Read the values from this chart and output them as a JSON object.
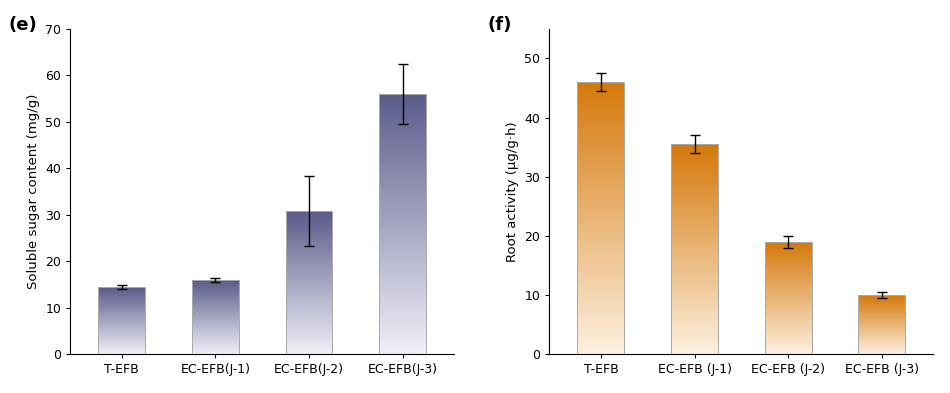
{
  "panel_e": {
    "categories": [
      "T-EFB",
      "EC-EFB(J-1)",
      "EC-EFB(J-2)",
      "EC-EFB(J-3)"
    ],
    "values": [
      14.5,
      16.0,
      30.8,
      56.0
    ],
    "errors": [
      0.5,
      0.5,
      7.5,
      6.5
    ],
    "ylabel": "Soluble sugar content (mg/g)",
    "ylim": [
      0,
      70
    ],
    "yticks": [
      0,
      10,
      20,
      30,
      40,
      50,
      60,
      70
    ],
    "label": "(e)",
    "bar_color_top": "#5a5a8a",
    "bar_color_bottom": "#f0f0f8"
  },
  "panel_f": {
    "categories": [
      "T-EFB",
      "EC-EFB (J-1)",
      "EC-EFB (J-2)",
      "EC-EFB (J-3)"
    ],
    "values": [
      46.0,
      35.5,
      19.0,
      10.0
    ],
    "errors": [
      1.5,
      1.5,
      1.0,
      0.5
    ],
    "ylabel": "Root activity (μg/g·h)",
    "ylim": [
      0,
      55
    ],
    "yticks": [
      0,
      10,
      20,
      30,
      40,
      50
    ],
    "label": "(f)",
    "bar_color_top": "#d4780a",
    "bar_color_bottom": "#fdf0e0"
  },
  "figsize": [
    9.5,
    3.93
  ],
  "dpi": 100,
  "bar_width": 0.5
}
